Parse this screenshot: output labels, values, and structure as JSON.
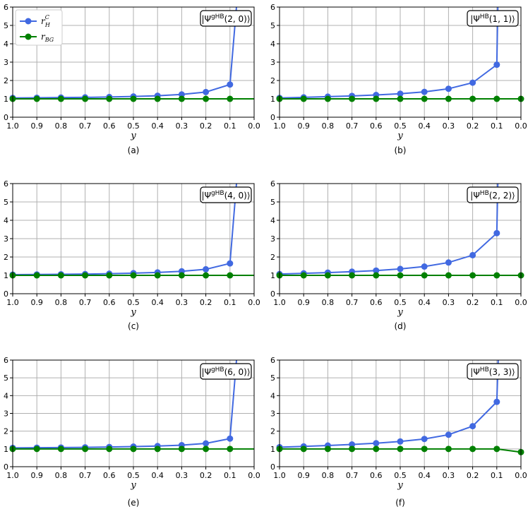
{
  "colors": {
    "rH": "#4169e1",
    "rBG": "#008000",
    "grid": "#b0b0b0"
  },
  "legend": {
    "rH_label": "r",
    "rH_sup": "C",
    "rH_sub": "H",
    "rBG_label": "r",
    "rBG_sub": "BG"
  },
  "chart_data": [
    {
      "type": "line",
      "caption": "(a)",
      "state": {
        "pre": "|Ψ",
        "sup": "gHB",
        "args": "(2, 0)⟩"
      },
      "xlabel": "y",
      "xlim": [
        1.0,
        0.0
      ],
      "ylim": [
        0,
        6
      ],
      "grid": true,
      "show_legend": true,
      "legend_position": "top-left",
      "x": [
        1.0,
        0.9,
        0.8,
        0.7,
        0.6,
        0.5,
        0.4,
        0.3,
        0.2,
        0.1
      ],
      "series": [
        {
          "name": "rH",
          "x": [
            1.0,
            0.9,
            0.8,
            0.7,
            0.6,
            0.5,
            0.4,
            0.3,
            0.2,
            0.1,
            0.07
          ],
          "values": [
            1.05,
            1.06,
            1.07,
            1.08,
            1.1,
            1.13,
            1.17,
            1.24,
            1.37,
            1.78,
            6.5
          ],
          "marker_count": 10
        },
        {
          "name": "rBG",
          "x": [
            1.0,
            0.9,
            0.8,
            0.7,
            0.6,
            0.5,
            0.4,
            0.3,
            0.2,
            0.1,
            0.0
          ],
          "values": [
            1,
            1,
            1,
            1,
            1,
            1,
            1,
            1,
            1,
            1,
            1
          ],
          "marker_count": 10
        }
      ]
    },
    {
      "type": "line",
      "caption": "(b)",
      "state": {
        "pre": "|Ψ",
        "sup": "HB",
        "args": "(1, 1)⟩"
      },
      "xlabel": "y",
      "xlim": [
        1.0,
        0.0
      ],
      "ylim": [
        0,
        6
      ],
      "grid": true,
      "show_legend": false,
      "series": [
        {
          "name": "rH",
          "x": [
            1.0,
            0.9,
            0.8,
            0.7,
            0.6,
            0.5,
            0.4,
            0.3,
            0.2,
            0.1,
            0.095
          ],
          "values": [
            1.05,
            1.08,
            1.12,
            1.16,
            1.21,
            1.28,
            1.38,
            1.55,
            1.88,
            2.86,
            6.5
          ],
          "marker_count": 10
        },
        {
          "name": "rBG",
          "x": [
            1.0,
            0.9,
            0.8,
            0.7,
            0.6,
            0.5,
            0.4,
            0.3,
            0.2,
            0.1,
            0.0
          ],
          "values": [
            1,
            1,
            1,
            1,
            1,
            1,
            1,
            1,
            1,
            1,
            1
          ],
          "marker_count": 11
        }
      ]
    },
    {
      "type": "line",
      "caption": "(c)",
      "state": {
        "pre": "|Ψ",
        "sup": "gHB",
        "args": "(4, 0)⟩"
      },
      "xlabel": "y",
      "xlim": [
        1.0,
        0.0
      ],
      "ylim": [
        0,
        6
      ],
      "grid": true,
      "show_legend": false,
      "series": [
        {
          "name": "rH",
          "x": [
            1.0,
            0.9,
            0.8,
            0.7,
            0.6,
            0.5,
            0.4,
            0.3,
            0.2,
            0.1,
            0.07
          ],
          "values": [
            1.04,
            1.05,
            1.06,
            1.07,
            1.09,
            1.12,
            1.16,
            1.22,
            1.33,
            1.65,
            6.5
          ],
          "marker_count": 10
        },
        {
          "name": "rBG",
          "x": [
            1.0,
            0.9,
            0.8,
            0.7,
            0.6,
            0.5,
            0.4,
            0.3,
            0.2,
            0.1,
            0.0
          ],
          "values": [
            1,
            1,
            1,
            1,
            1,
            1,
            1,
            1,
            1,
            1,
            1
          ],
          "marker_count": 10
        }
      ]
    },
    {
      "type": "line",
      "caption": "(d)",
      "state": {
        "pre": "|Ψ",
        "sup": "HB",
        "args": "(2, 2)⟩"
      },
      "xlabel": "y",
      "xlim": [
        1.0,
        0.0
      ],
      "ylim": [
        0,
        6
      ],
      "grid": true,
      "show_legend": false,
      "series": [
        {
          "name": "rH",
          "x": [
            1.0,
            0.9,
            0.8,
            0.7,
            0.6,
            0.5,
            0.4,
            0.3,
            0.2,
            0.1,
            0.095
          ],
          "values": [
            1.07,
            1.11,
            1.15,
            1.2,
            1.26,
            1.35,
            1.48,
            1.7,
            2.1,
            3.3,
            6.5
          ],
          "marker_count": 10
        },
        {
          "name": "rBG",
          "x": [
            1.0,
            0.9,
            0.8,
            0.7,
            0.6,
            0.5,
            0.4,
            0.3,
            0.2,
            0.1,
            0.0
          ],
          "values": [
            1,
            1,
            1,
            1,
            1,
            1,
            1,
            1,
            1,
            1,
            1
          ],
          "marker_count": 11
        }
      ]
    },
    {
      "type": "line",
      "caption": "(e)",
      "state": {
        "pre": "|Ψ",
        "sup": "gHB",
        "args": "(6, 0)⟩"
      },
      "xlabel": "y",
      "xlim": [
        1.0,
        0.0
      ],
      "ylim": [
        0,
        6
      ],
      "grid": true,
      "show_legend": false,
      "series": [
        {
          "name": "rH",
          "x": [
            1.0,
            0.9,
            0.8,
            0.7,
            0.6,
            0.5,
            0.4,
            0.3,
            0.2,
            0.1,
            0.07
          ],
          "values": [
            1.06,
            1.07,
            1.08,
            1.09,
            1.11,
            1.13,
            1.16,
            1.21,
            1.31,
            1.58,
            6.5
          ],
          "marker_count": 10
        },
        {
          "name": "rBG",
          "x": [
            1.0,
            0.9,
            0.8,
            0.7,
            0.6,
            0.5,
            0.4,
            0.3,
            0.2,
            0.1,
            0.0
          ],
          "values": [
            1,
            1,
            1,
            1,
            1,
            1,
            1,
            1,
            1,
            1,
            1
          ],
          "marker_count": 10
        }
      ]
    },
    {
      "type": "line",
      "caption": "(f)",
      "state": {
        "pre": "|Ψ",
        "sup": "HB",
        "args": "(3, 3)⟩"
      },
      "xlabel": "y",
      "xlim": [
        1.0,
        0.0
      ],
      "ylim": [
        0,
        6
      ],
      "grid": true,
      "show_legend": false,
      "series": [
        {
          "name": "rH",
          "x": [
            1.0,
            0.9,
            0.8,
            0.7,
            0.6,
            0.5,
            0.4,
            0.3,
            0.2,
            0.1,
            0.093
          ],
          "values": [
            1.1,
            1.14,
            1.19,
            1.25,
            1.32,
            1.42,
            1.56,
            1.8,
            2.28,
            3.65,
            6.5
          ],
          "marker_count": 10
        },
        {
          "name": "rBG",
          "x": [
            1.0,
            0.9,
            0.8,
            0.7,
            0.6,
            0.5,
            0.4,
            0.3,
            0.2,
            0.1,
            0.0
          ],
          "values": [
            1,
            1,
            1,
            1,
            1,
            1,
            1,
            1,
            1,
            1,
            0.82
          ],
          "marker_count": 11
        }
      ]
    }
  ]
}
